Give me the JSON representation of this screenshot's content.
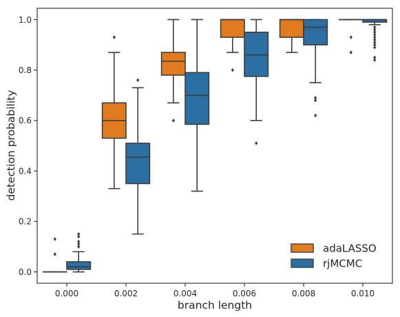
{
  "chart_data": {
    "type": "box",
    "xlabel": "branch length",
    "ylabel": "detection probability",
    "categories": [
      "0.000",
      "0.002",
      "0.004",
      "0.006",
      "0.008",
      "0.010"
    ],
    "ylim": [
      -0.045,
      1.045
    ],
    "yticks": [
      "0.0",
      "0.2",
      "0.4",
      "0.6",
      "0.8",
      "1.0"
    ],
    "grid": false,
    "legend_position": "lower-right",
    "series": [
      {
        "name": "adaLASSO",
        "color": "#e07b1f",
        "boxes": [
          {
            "q1": 0.0,
            "median": 0.0,
            "q3": 0.0,
            "whisker_low": 0.0,
            "whisker_high": 0.0,
            "outliers": [
              0.07,
              0.13
            ]
          },
          {
            "q1": 0.53,
            "median": 0.6,
            "q3": 0.67,
            "whisker_low": 0.33,
            "whisker_high": 0.87,
            "outliers": [
              0.93
            ]
          },
          {
            "q1": 0.78,
            "median": 0.835,
            "q3": 0.87,
            "whisker_low": 0.67,
            "whisker_high": 1.0,
            "outliers": [
              0.6
            ]
          },
          {
            "q1": 0.93,
            "median": 1.0,
            "q3": 1.0,
            "whisker_low": 0.87,
            "whisker_high": 1.0,
            "outliers": [
              0.8
            ]
          },
          {
            "q1": 0.93,
            "median": 1.0,
            "q3": 1.0,
            "whisker_low": 0.87,
            "whisker_high": 1.0,
            "outliers": []
          },
          {
            "q1": 1.0,
            "median": 1.0,
            "q3": 1.0,
            "whisker_low": 1.0,
            "whisker_high": 1.0,
            "outliers": [
              0.87,
              0.93
            ]
          }
        ]
      },
      {
        "name": "rjMCMC",
        "color": "#2c6fa3",
        "boxes": [
          {
            "q1": 0.01,
            "median": 0.02,
            "q3": 0.04,
            "whisker_low": 0.0,
            "whisker_high": 0.08,
            "outliers": [
              0.1,
              0.11,
              0.12,
              0.14,
              0.15
            ]
          },
          {
            "q1": 0.35,
            "median": 0.455,
            "q3": 0.51,
            "whisker_low": 0.15,
            "whisker_high": 0.73,
            "outliers": [
              0.76
            ]
          },
          {
            "q1": 0.585,
            "median": 0.7,
            "q3": 0.79,
            "whisker_low": 0.32,
            "whisker_high": 1.0,
            "outliers": []
          },
          {
            "q1": 0.775,
            "median": 0.86,
            "q3": 0.95,
            "whisker_low": 0.6,
            "whisker_high": 1.0,
            "outliers": [
              0.51
            ]
          },
          {
            "q1": 0.9,
            "median": 0.97,
            "q3": 1.0,
            "whisker_low": 0.75,
            "whisker_high": 1.0,
            "outliers": [
              0.62,
              0.68,
              0.69
            ]
          },
          {
            "q1": 0.99,
            "median": 1.0,
            "q3": 1.0,
            "whisker_low": 0.98,
            "whisker_high": 1.0,
            "outliers": [
              0.84,
              0.85,
              0.89,
              0.9,
              0.91,
              0.92,
              0.93,
              0.94,
              0.95,
              0.96,
              0.97
            ]
          }
        ]
      }
    ]
  }
}
